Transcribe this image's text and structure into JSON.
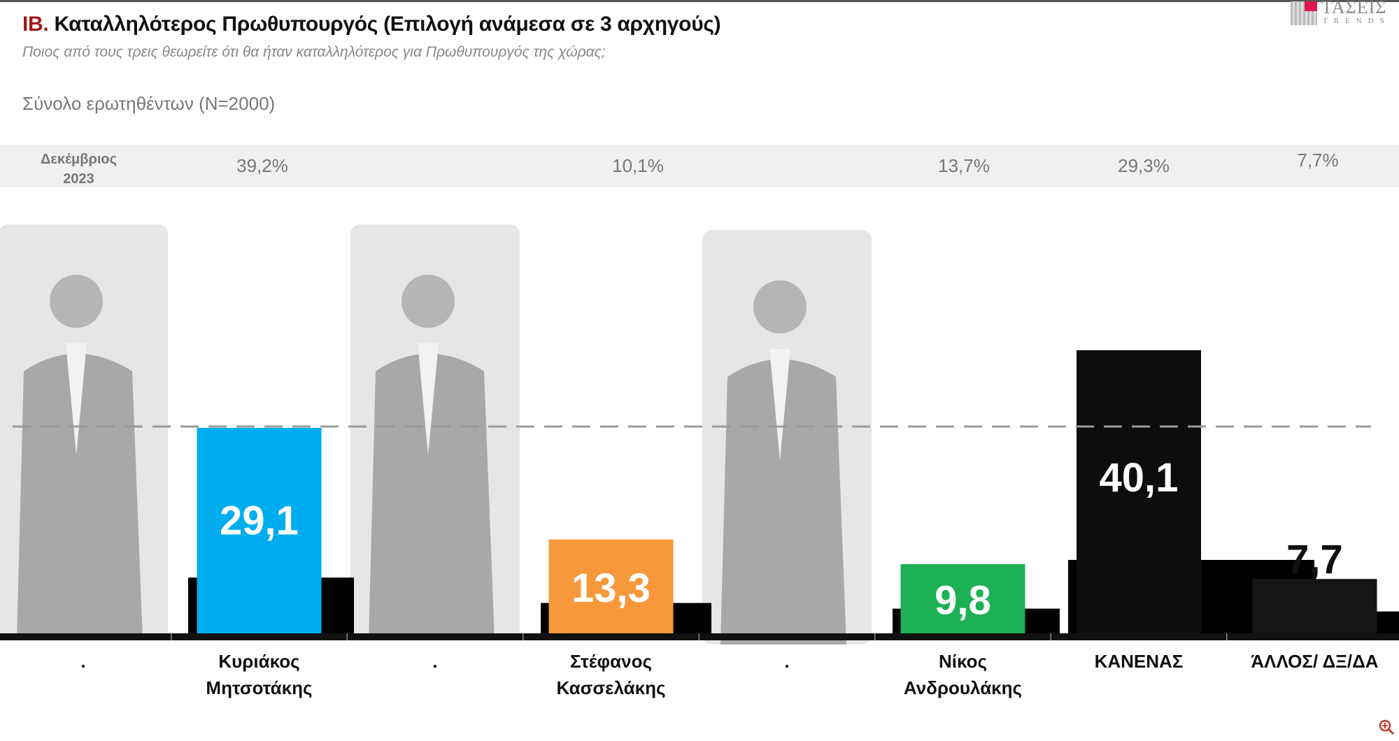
{
  "header": {
    "title_number": "ΙΒ.",
    "title": "Καταλληλότερος Πρωθυπουργός (Επιλογή ανάμεσα σε 3 αρχηγούς)",
    "subtitle": "Ποιος από τους τρεις θεωρείτε ότι θα ήταν καταλληλότερος για Πρωθυπουργός της χώρας;",
    "base": "Σύνολο ερωτηθέντων (N=2000)"
  },
  "logo": {
    "line1": "ΤΑΣΕΙΣ",
    "line2": "TRENDS",
    "accent": "#e0174f"
  },
  "comparison": {
    "label_line1": "Δεκέμβριος",
    "label_line2": "2023",
    "values": [
      "39,2%",
      "10,1%",
      "13,7%",
      "29,3%",
      "7,7%"
    ]
  },
  "chart_data": {
    "type": "bar",
    "categories": [
      ".",
      "Κυριάκος Μητσοτάκης",
      ".",
      "Στέφανος Κασσελάκης",
      ".",
      "Νίκος Ανδρουλάκης",
      "ΚΑΝΕΝΑΣ",
      "ΆΛΛΟΣ/ ΔΞ/ΔΑ"
    ],
    "category_lines": [
      [
        "."
      ],
      [
        "Κυριάκος",
        "Μητσοτάκης"
      ],
      [
        "."
      ],
      [
        "Στέφανος",
        "Κασσελάκης"
      ],
      [
        "."
      ],
      [
        "Νίκος",
        "Ανδρουλάκης"
      ],
      [
        "ΚΑΝΕΝΑΣ"
      ],
      [
        "ΆΛΛΟΣ/ ΔΞ/ΔΑ"
      ]
    ],
    "photo_slots": [
      0,
      2,
      4
    ],
    "bars": [
      {
        "category_index": 1,
        "value": 29.1,
        "label": "29,1",
        "color": "#00adef",
        "label_color": "#ffffff"
      },
      {
        "category_index": 3,
        "value": 13.3,
        "label": "13,3",
        "color": "#f7993a",
        "label_color": "#ffffff"
      },
      {
        "category_index": 5,
        "value": 9.8,
        "label": "9,8",
        "color": "#1db155",
        "label_color": "#ffffff"
      },
      {
        "category_index": 6,
        "value": 40.1,
        "label": "40,1",
        "color": "#0d0d0d",
        "label_color": "#ffffff"
      },
      {
        "category_index": 7,
        "value": 7.7,
        "label": "7,7",
        "color": "#151515",
        "label_color": "#111111"
      }
    ],
    "background_bars": [
      7.9,
      4.3,
      3.5,
      10.4,
      3.1
    ],
    "reference_line": 29.3,
    "ylim": [
      0,
      45
    ],
    "grid": false,
    "legend": "none"
  }
}
